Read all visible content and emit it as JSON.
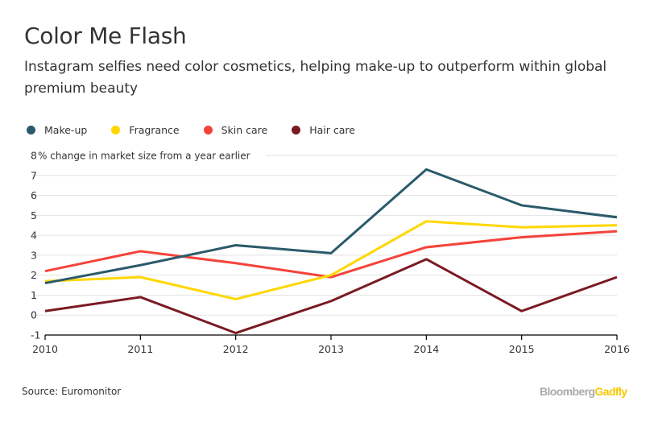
{
  "title": "Color Me Flash",
  "subtitle": "Instagram selfies need color cosmetics, helping make-up to outperform within global premium beauty",
  "source": "Source: Euromonitor",
  "logo": {
    "part1": "Bloomberg",
    "part2": "Gadfly"
  },
  "chart_data": {
    "type": "line",
    "title": "Color Me Flash",
    "ylabel": "% change in market size from a year earlier",
    "x": [
      2010,
      2011,
      2012,
      2013,
      2014,
      2015,
      2016
    ],
    "xtick_labels": [
      "2010",
      "2011",
      "2012",
      "2013",
      "2014",
      "2015",
      "2016"
    ],
    "ylim": [
      -1,
      8
    ],
    "yticks": [
      "8",
      "7",
      "6",
      "5",
      "4",
      "3",
      "2",
      "1",
      "0",
      "-1"
    ],
    "grid": true,
    "legend_placement": "top-left",
    "series": [
      {
        "name": "Make-up",
        "color": "#2a5a6b",
        "values": [
          1.6,
          2.5,
          3.5,
          3.1,
          7.3,
          5.5,
          4.9
        ]
      },
      {
        "name": "Fragrance",
        "color": "#ffd700",
        "values": [
          1.7,
          1.9,
          0.8,
          2.0,
          4.7,
          4.4,
          4.5
        ]
      },
      {
        "name": "Skin care",
        "color": "#f5433a",
        "values": [
          2.2,
          3.2,
          2.6,
          1.9,
          3.4,
          3.9,
          4.2
        ]
      },
      {
        "name": "Hair care",
        "color": "#7a1a22",
        "values": [
          0.2,
          0.9,
          -0.9,
          0.7,
          2.8,
          0.2,
          1.9
        ]
      }
    ]
  }
}
